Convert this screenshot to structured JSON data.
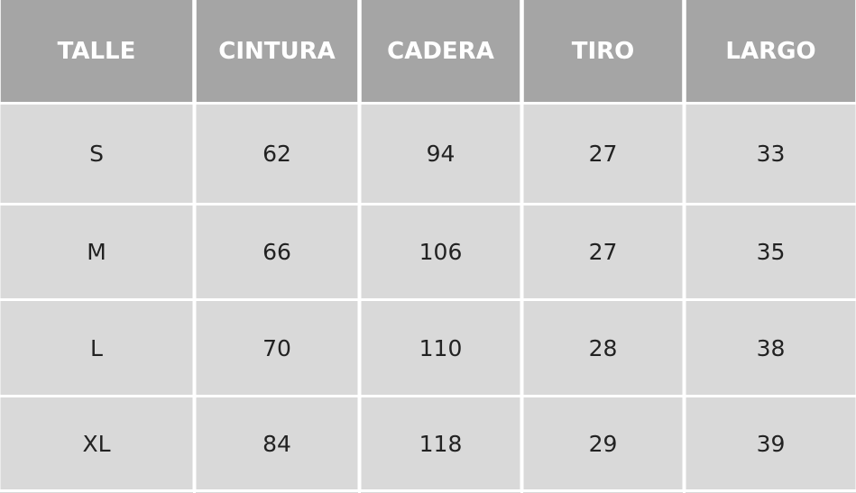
{
  "table": {
    "headers": [
      "TALLE",
      "CINTURA",
      "CADERA",
      "TIRO",
      "LARGO"
    ],
    "rows": [
      [
        "S",
        "62",
        "94",
        "27",
        "33"
      ],
      [
        "M",
        "66",
        "106",
        "27",
        "35"
      ],
      [
        "L",
        "70",
        "110",
        "28",
        "38"
      ],
      [
        "XL",
        "84",
        "118",
        "29",
        "39"
      ]
    ]
  },
  "colors": {
    "header_bg": "#a5a5a5",
    "cell_bg": "#d9d9d9",
    "header_text": "#ffffff"
  }
}
